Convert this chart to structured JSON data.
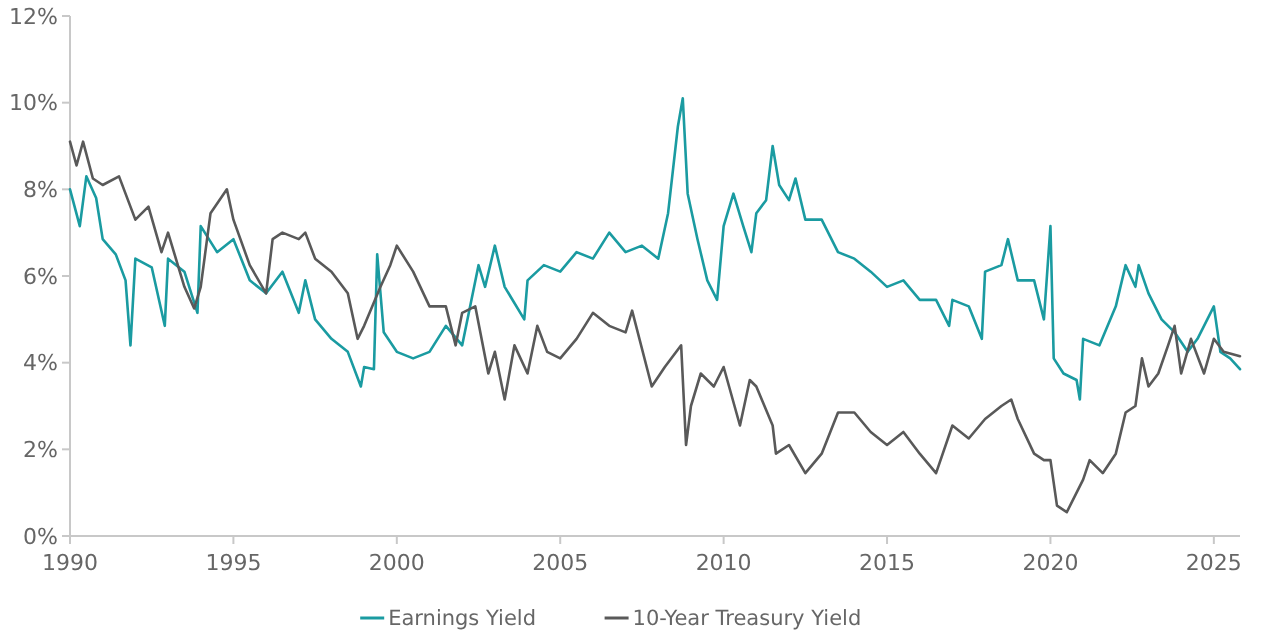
{
  "chart_data": {
    "type": "line",
    "xlim": [
      1990,
      2025.8
    ],
    "xticks": [
      1990,
      1995,
      2000,
      2005,
      2010,
      2015,
      2020,
      2025
    ],
    "ylim": [
      0,
      12
    ],
    "yticks": [
      {
        "value": 0,
        "label": "0%"
      },
      {
        "value": 2,
        "label": "2%"
      },
      {
        "value": 4,
        "label": "4%"
      },
      {
        "value": 6,
        "label": "6%"
      },
      {
        "value": 8,
        "label": "8%"
      },
      {
        "value": 10,
        "label": "10%"
      },
      {
        "value": 12,
        "label": "12%"
      }
    ],
    "grid": false,
    "legend": "bottom",
    "marker": "none",
    "line_style": "solid",
    "series": [
      {
        "name": "Earnings Yield",
        "color": "#1a9ba1",
        "x": [
          1990,
          1990.3,
          1990.5,
          1990.8,
          1991,
          1991.4,
          1991.7,
          1991.85,
          1992,
          1992.5,
          1992.9,
          1993,
          1993.5,
          1993.9,
          1994,
          1994.5,
          1995,
          1995.5,
          1996,
          1996.5,
          1997,
          1997.2,
          1997.5,
          1998,
          1998.5,
          1998.9,
          1999,
          1999.3,
          1999.4,
          1999.6,
          2000,
          2000.5,
          2001,
          2001.5,
          2002,
          2002.5,
          2002.7,
          2003,
          2003.3,
          2003.9,
          2004,
          2004.5,
          2005,
          2005.5,
          2006,
          2006.5,
          2007,
          2007.5,
          2008,
          2008.3,
          2008.6,
          2008.75,
          2008.9,
          2009.2,
          2009.5,
          2009.8,
          2010,
          2010.3,
          2010.6,
          2010.85,
          2011,
          2011.3,
          2011.5,
          2011.7,
          2012,
          2012.2,
          2012.5,
          2013,
          2013.5,
          2014,
          2014.5,
          2015,
          2015.5,
          2016,
          2016.5,
          2016.9,
          2017,
          2017.5,
          2017.9,
          2018,
          2018.5,
          2018.7,
          2019,
          2019.5,
          2019.8,
          2020,
          2020.1,
          2020.4,
          2020.8,
          2020.9,
          2021,
          2021.5,
          2022,
          2022.3,
          2022.6,
          2022.7,
          2023,
          2023.4,
          2023.8,
          2024.2,
          2024.5,
          2025,
          2025.2,
          2025.5,
          2025.8
        ],
        "values": [
          8.0,
          7.15,
          8.3,
          7.8,
          6.85,
          6.5,
          5.9,
          4.4,
          6.4,
          6.2,
          4.85,
          6.4,
          6.1,
          5.15,
          7.15,
          6.55,
          6.85,
          5.9,
          5.6,
          6.1,
          5.15,
          5.9,
          5.0,
          4.55,
          4.25,
          3.45,
          3.9,
          3.85,
          6.5,
          4.7,
          4.25,
          4.1,
          4.25,
          4.85,
          4.4,
          6.25,
          5.75,
          6.7,
          5.75,
          5.0,
          5.9,
          6.25,
          6.1,
          6.55,
          6.4,
          7.0,
          6.55,
          6.7,
          6.4,
          7.45,
          9.45,
          10.1,
          7.9,
          6.85,
          5.9,
          5.45,
          7.15,
          7.9,
          7.15,
          6.55,
          7.45,
          7.75,
          9.0,
          8.1,
          7.75,
          8.25,
          7.3,
          7.3,
          6.55,
          6.4,
          6.1,
          5.75,
          5.9,
          5.45,
          5.45,
          4.85,
          5.45,
          5.3,
          4.55,
          6.1,
          6.25,
          6.85,
          5.9,
          5.9,
          5.0,
          7.15,
          4.1,
          3.75,
          3.6,
          3.15,
          4.55,
          4.4,
          5.3,
          6.25,
          5.75,
          6.25,
          5.6,
          5.0,
          4.7,
          4.25,
          4.55,
          5.3,
          4.25,
          4.1,
          3.85
        ]
      },
      {
        "name": "10-Year Treasury Yield",
        "color": "#595959",
        "x": [
          1990,
          1990.2,
          1990.4,
          1990.7,
          1991,
          1991.5,
          1992,
          1992.4,
          1992.8,
          1993,
          1993.5,
          1993.8,
          1994,
          1994.3,
          1994.8,
          1995,
          1995.5,
          1996,
          1996.2,
          1996.5,
          1997,
          1997.2,
          1997.5,
          1998,
          1998.5,
          1998.8,
          1999,
          1999.5,
          1999.8,
          2000,
          2000.5,
          2001,
          2001.5,
          2001.8,
          2002,
          2002.4,
          2002.8,
          2003,
          2003.3,
          2003.6,
          2004,
          2004.3,
          2004.6,
          2005,
          2005.5,
          2006,
          2006.5,
          2007,
          2007.2,
          2007.8,
          2008.2,
          2008.7,
          2008.85,
          2009,
          2009.3,
          2009.7,
          2010,
          2010.5,
          2010.8,
          2011,
          2011.5,
          2011.6,
          2012,
          2012.5,
          2013,
          2013.5,
          2014,
          2014.5,
          2015,
          2015.5,
          2016,
          2016.5,
          2017,
          2017.5,
          2018,
          2018.5,
          2018.8,
          2019,
          2019.5,
          2019.8,
          2020,
          2020.2,
          2020.5,
          2021,
          2021.2,
          2021.6,
          2022,
          2022.3,
          2022.6,
          2022.8,
          2023,
          2023.3,
          2023.6,
          2023.8,
          2024,
          2024.3,
          2024.7,
          2025,
          2025.3,
          2025.8
        ],
        "values": [
          9.1,
          8.55,
          9.1,
          8.25,
          8.1,
          8.3,
          7.3,
          7.6,
          6.55,
          7.0,
          5.75,
          5.25,
          5.75,
          7.45,
          8.0,
          7.3,
          6.25,
          5.6,
          6.85,
          7.0,
          6.85,
          7.0,
          6.4,
          6.1,
          5.6,
          4.55,
          4.85,
          5.75,
          6.25,
          6.7,
          6.1,
          5.3,
          5.3,
          4.4,
          5.15,
          5.3,
          3.75,
          4.25,
          3.15,
          4.4,
          3.75,
          4.85,
          4.25,
          4.1,
          4.55,
          5.15,
          4.85,
          4.7,
          5.2,
          3.45,
          3.9,
          4.4,
          2.1,
          3.0,
          3.75,
          3.45,
          3.9,
          2.55,
          3.6,
          3.45,
          2.55,
          1.9,
          2.1,
          1.45,
          1.9,
          2.85,
          2.85,
          2.4,
          2.1,
          2.4,
          1.9,
          1.45,
          2.55,
          2.25,
          2.7,
          3.0,
          3.15,
          2.7,
          1.9,
          1.75,
          1.75,
          0.7,
          0.55,
          1.3,
          1.75,
          1.45,
          1.9,
          2.85,
          3.0,
          4.1,
          3.45,
          3.75,
          4.4,
          4.85,
          3.75,
          4.55,
          3.75,
          4.55,
          4.25,
          4.15
        ]
      }
    ]
  }
}
